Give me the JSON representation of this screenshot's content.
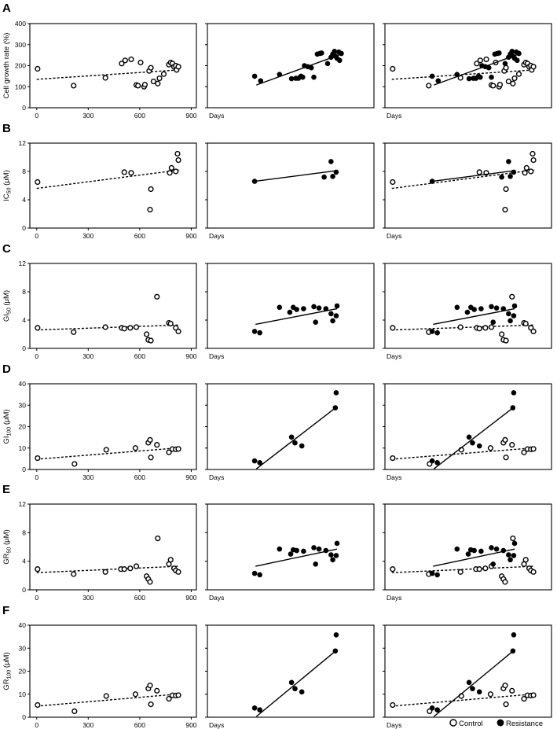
{
  "legend": {
    "control_label": "Control",
    "resistance_label": "Resistance"
  },
  "chart_data": [
    {
      "type": "scatter",
      "panel": "A",
      "ylabel_main": "Cell growth rate (%)",
      "ylabel_sub": "",
      "ylabel_suffix": "",
      "ylim": [
        0,
        400
      ],
      "yticks": [
        0,
        100,
        200,
        300,
        400
      ],
      "xlim": [
        -40,
        930
      ],
      "xticks": [
        0,
        300,
        600,
        900
      ],
      "xlabel_days": "Days",
      "series": [
        {
          "name": "Control",
          "points": [
            [
              5,
              185
            ],
            [
              215,
              105
            ],
            [
              400,
              142
            ],
            [
              495,
              210
            ],
            [
              515,
              225
            ],
            [
              550,
              230
            ],
            [
              580,
              108
            ],
            [
              590,
              105
            ],
            [
              605,
              215
            ],
            [
              625,
              100
            ],
            [
              630,
              110
            ],
            [
              655,
              175
            ],
            [
              665,
              190
            ],
            [
              680,
              125
            ],
            [
              705,
              115
            ],
            [
              715,
              140
            ],
            [
              740,
              160
            ],
            [
              770,
              205
            ],
            [
              780,
              215
            ],
            [
              790,
              210
            ],
            [
              800,
              195
            ],
            [
              810,
              200
            ],
            [
              815,
              180
            ],
            [
              825,
              195
            ]
          ],
          "trend": [
            [
              0,
              135
            ],
            [
              830,
              180
            ]
          ]
        },
        {
          "name": "Resistance",
          "points": [
            [
              235,
              150
            ],
            [
              270,
              128
            ],
            [
              380,
              158
            ],
            [
              450,
              138
            ],
            [
              475,
              140
            ],
            [
              490,
              140
            ],
            [
              505,
              150
            ],
            [
              515,
              145
            ],
            [
              525,
              200
            ],
            [
              545,
              195
            ],
            [
              565,
              190
            ],
            [
              580,
              145
            ],
            [
              600,
              255
            ],
            [
              615,
              258
            ],
            [
              625,
              260
            ],
            [
              660,
              210
            ],
            [
              680,
              240
            ],
            [
              690,
              255
            ],
            [
              700,
              268
            ],
            [
              705,
              245
            ],
            [
              715,
              235
            ],
            [
              725,
              265
            ],
            [
              730,
              225
            ],
            [
              740,
              258
            ]
          ],
          "trend": [
            [
              245,
              108
            ],
            [
              740,
              255
            ]
          ]
        }
      ]
    },
    {
      "type": "scatter",
      "panel": "B",
      "ylabel_main": "IC",
      "ylabel_sub": "50",
      "ylabel_suffix": " (μM)",
      "ylim": [
        0,
        12
      ],
      "yticks": [
        0,
        4,
        8,
        12
      ],
      "xlim": [
        -40,
        930
      ],
      "xticks": [
        0,
        300,
        600,
        900
      ],
      "xlabel_days": "Days",
      "series": [
        {
          "name": "Control",
          "points": [
            [
              5,
              6.5
            ],
            [
              510,
              7.9
            ],
            [
              550,
              7.8
            ],
            [
              665,
              5.5
            ],
            [
              660,
              2.6
            ],
            [
              775,
              7.8
            ],
            [
              785,
              8.5
            ],
            [
              820,
              10.5
            ],
            [
              825,
              9.6
            ],
            [
              810,
              8.0
            ]
          ],
          "trend": [
            [
              0,
              5.6
            ],
            [
              830,
              8.2
            ]
          ]
        },
        {
          "name": "Resistance",
          "points": [
            [
              235,
              6.6
            ],
            [
              640,
              7.2
            ],
            [
              680,
              9.4
            ],
            [
              690,
              7.3
            ],
            [
              710,
              7.9
            ]
          ],
          "trend": [
            [
              235,
              6.6
            ],
            [
              710,
              8.1
            ]
          ]
        }
      ]
    },
    {
      "type": "scatter",
      "panel": "C",
      "ylabel_main": "GI",
      "ylabel_sub": "50",
      "ylabel_suffix": " (μM)",
      "ylim": [
        0,
        12
      ],
      "yticks": [
        0,
        4,
        8,
        12
      ],
      "xlim": [
        -40,
        930
      ],
      "xticks": [
        0,
        300,
        600,
        900
      ],
      "xlabel_days": "Days",
      "series": [
        {
          "name": "Control",
          "points": [
            [
              5,
              2.9
            ],
            [
              215,
              2.3
            ],
            [
              400,
              3.0
            ],
            [
              495,
              2.9
            ],
            [
              510,
              2.8
            ],
            [
              545,
              2.9
            ],
            [
              580,
              3.0
            ],
            [
              640,
              2.0
            ],
            [
              650,
              1.2
            ],
            [
              665,
              1.1
            ],
            [
              700,
              7.3
            ],
            [
              770,
              3.6
            ],
            [
              780,
              3.5
            ],
            [
              810,
              2.9
            ],
            [
              825,
              2.4
            ]
          ],
          "trend": [
            [
              0,
              2.6
            ],
            [
              830,
              3.3
            ]
          ]
        },
        {
          "name": "Resistance",
          "points": [
            [
              235,
              2.4
            ],
            [
              265,
              2.2
            ],
            [
              380,
              5.8
            ],
            [
              440,
              5.1
            ],
            [
              460,
              5.8
            ],
            [
              480,
              5.5
            ],
            [
              520,
              5.6
            ],
            [
              580,
              5.9
            ],
            [
              590,
              3.7
            ],
            [
              610,
              5.7
            ],
            [
              650,
              5.6
            ],
            [
              680,
              4.9
            ],
            [
              690,
              3.9
            ],
            [
              710,
              4.6
            ],
            [
              715,
              6.0
            ]
          ],
          "trend": [
            [
              240,
              3.4
            ],
            [
              715,
              5.6
            ]
          ]
        }
      ]
    },
    {
      "type": "scatter",
      "panel": "D",
      "ylabel_main": "GI",
      "ylabel_sub": "100",
      "ylabel_suffix": " (μM)",
      "ylim": [
        0,
        40
      ],
      "yticks": [
        0,
        10,
        20,
        30,
        40
      ],
      "xlim": [
        -40,
        930
      ],
      "xticks": [
        0,
        300,
        600,
        900
      ],
      "xlabel_days": "Days",
      "series": [
        {
          "name": "Control",
          "points": [
            [
              5,
              5.3
            ],
            [
              220,
              2.6
            ],
            [
              405,
              9.2
            ],
            [
              575,
              10.0
            ],
            [
              650,
              12.5
            ],
            [
              660,
              13.8
            ],
            [
              665,
              5.6
            ],
            [
              700,
              11.5
            ],
            [
              770,
              8.0
            ],
            [
              790,
              9.5
            ],
            [
              810,
              9.4
            ],
            [
              825,
              9.6
            ]
          ],
          "trend": [
            [
              0,
              4.8
            ],
            [
              830,
              10.1
            ]
          ]
        },
        {
          "name": "Resistance",
          "points": [
            [
              235,
              4.0
            ],
            [
              265,
              3.2
            ],
            [
              450,
              15.1
            ],
            [
              470,
              12.4
            ],
            [
              510,
              11.0
            ],
            [
              705,
              28.8
            ],
            [
              710,
              35.8
            ]
          ],
          "trend": [
            [
              245,
              0.3
            ],
            [
              710,
              29.0
            ]
          ]
        }
      ]
    },
    {
      "type": "scatter",
      "panel": "E",
      "ylabel_main": "GR",
      "ylabel_sub": "50",
      "ylabel_suffix": " (μM)",
      "ylim": [
        0,
        12
      ],
      "yticks": [
        0,
        4,
        8,
        12
      ],
      "xlim": [
        -40,
        930
      ],
      "xticks": [
        0,
        300,
        600,
        900
      ],
      "xlabel_days": "Days",
      "series": [
        {
          "name": "Control",
          "points": [
            [
              5,
              2.9
            ],
            [
              215,
              2.2
            ],
            [
              400,
              2.5
            ],
            [
              490,
              2.9
            ],
            [
              510,
              2.9
            ],
            [
              545,
              3.0
            ],
            [
              580,
              3.3
            ],
            [
              640,
              1.9
            ],
            [
              650,
              1.5
            ],
            [
              660,
              1.1
            ],
            [
              705,
              7.2
            ],
            [
              770,
              3.6
            ],
            [
              780,
              4.2
            ],
            [
              800,
              3.0
            ],
            [
              810,
              2.7
            ],
            [
              825,
              2.5
            ]
          ],
          "trend": [
            [
              0,
              2.4
            ],
            [
              830,
              3.3
            ]
          ]
        },
        {
          "name": "Resistance",
          "points": [
            [
              235,
              2.3
            ],
            [
              265,
              2.1
            ],
            [
              380,
              5.7
            ],
            [
              445,
              5.0
            ],
            [
              460,
              5.6
            ],
            [
              480,
              5.5
            ],
            [
              520,
              5.4
            ],
            [
              580,
              5.9
            ],
            [
              590,
              3.6
            ],
            [
              610,
              5.7
            ],
            [
              650,
              5.5
            ],
            [
              680,
              4.9
            ],
            [
              690,
              4.2
            ],
            [
              710,
              4.8
            ],
            [
              715,
              6.5
            ]
          ],
          "trend": [
            [
              240,
              3.3
            ],
            [
              715,
              5.7
            ]
          ]
        }
      ]
    },
    {
      "type": "scatter",
      "panel": "F",
      "ylabel_main": "GR",
      "ylabel_sub": "100",
      "ylabel_suffix": " (μM)",
      "ylim": [
        0,
        40
      ],
      "yticks": [
        0,
        10,
        20,
        30,
        40
      ],
      "xlim": [
        -40,
        930
      ],
      "xticks": [
        0,
        300,
        600,
        900
      ],
      "xlabel_days": "Days",
      "series": [
        {
          "name": "Control",
          "points": [
            [
              5,
              5.3
            ],
            [
              220,
              2.6
            ],
            [
              405,
              9.2
            ],
            [
              575,
              10.0
            ],
            [
              650,
              12.5
            ],
            [
              660,
              13.8
            ],
            [
              665,
              5.6
            ],
            [
              700,
              11.5
            ],
            [
              770,
              8.0
            ],
            [
              790,
              9.5
            ],
            [
              810,
              9.4
            ],
            [
              825,
              9.6
            ]
          ],
          "trend": [
            [
              0,
              4.8
            ],
            [
              830,
              10.1
            ]
          ]
        },
        {
          "name": "Resistance",
          "points": [
            [
              235,
              4.0
            ],
            [
              265,
              3.2
            ],
            [
              450,
              15.1
            ],
            [
              470,
              12.4
            ],
            [
              510,
              11.0
            ],
            [
              705,
              28.8
            ],
            [
              710,
              35.8
            ]
          ],
          "trend": [
            [
              245,
              0.3
            ],
            [
              710,
              29.0
            ]
          ]
        }
      ]
    }
  ]
}
